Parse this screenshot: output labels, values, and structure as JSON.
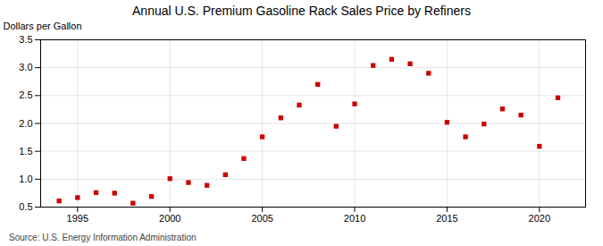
{
  "chart_data": {
    "type": "scatter",
    "title": "Annual U.S. Premium Gasoline Rack Sales Price by Refiners",
    "ylabel": "Dollars per Gallon",
    "source": "Source: U.S. Energy Information Administration",
    "x": [
      1994,
      1995,
      1996,
      1997,
      1998,
      1999,
      2000,
      2001,
      2002,
      2003,
      2004,
      2005,
      2006,
      2007,
      2008,
      2009,
      2010,
      2011,
      2012,
      2013,
      2014,
      2015,
      2016,
      2017,
      2018,
      2019,
      2020,
      2021
    ],
    "values": [
      0.61,
      0.67,
      0.76,
      0.75,
      0.57,
      0.69,
      1.01,
      0.94,
      0.89,
      1.08,
      1.37,
      1.76,
      2.1,
      2.33,
      2.7,
      1.95,
      2.35,
      3.04,
      3.15,
      3.07,
      2.9,
      2.02,
      1.76,
      1.99,
      2.26,
      2.15,
      1.59,
      2.46
    ],
    "color": "#cc0000",
    "marker": "square",
    "xlim": [
      1993,
      2022.5
    ],
    "ylim": [
      0.5,
      3.5
    ],
    "xticks": [
      1995,
      2000,
      2005,
      2010,
      2015,
      2020
    ],
    "yticks": [
      0.5,
      {
        "value": 1.0,
        "label": "1.0"
      },
      1.5,
      {
        "value": 2.0,
        "label": "2.0"
      },
      2.5,
      {
        "value": 3.0,
        "label": "3.0"
      },
      3.5
    ],
    "grid": true
  }
}
